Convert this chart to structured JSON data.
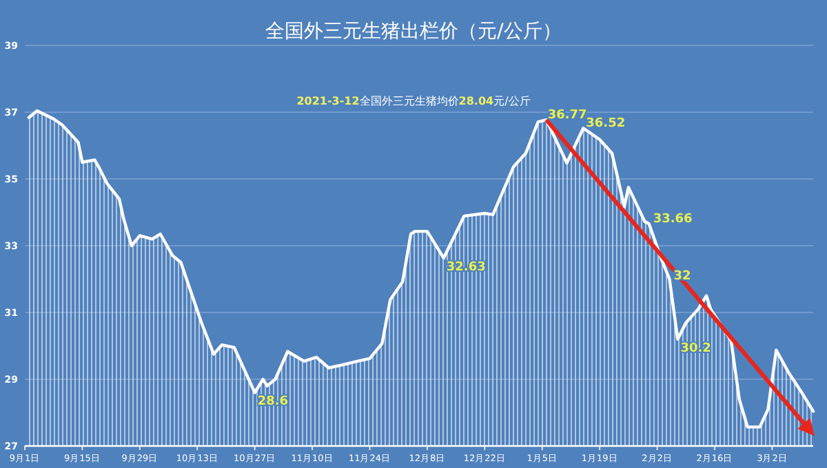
{
  "chart_data": {
    "type": "area",
    "title": "全国外三元生猪出栏价（元/公斤）",
    "annotations": [
      "2021-3-12全国外三元生猪均价28.04元/公斤",
      {
        "text": "28.6",
        "x": "2020-10-27",
        "y": 28.6
      },
      {
        "text": "32.63",
        "x": "2020-12-12",
        "y": 32.63
      },
      {
        "text": "36.77",
        "x": "2021-01-06",
        "y": 36.77
      },
      {
        "text": "36.52",
        "x": "2021-01-15",
        "y": 36.52
      },
      {
        "text": "33.66",
        "x": "2021-01-31",
        "y": 33.66
      },
      {
        "text": "32",
        "x": "2021-02-05",
        "y": 32.0
      },
      {
        "text": "30.2",
        "x": "2021-02-07",
        "y": 30.2
      }
    ],
    "series": [
      {
        "color": "#ffffff",
        "x": [
          "2020-09-02",
          "2020-09-04",
          "2020-09-08",
          "2020-09-10",
          "2020-09-11",
          "2020-09-14",
          "2020-09-15",
          "2020-09-18",
          "2020-09-19",
          "2020-09-21",
          "2020-09-24",
          "2020-09-25",
          "2020-09-27",
          "2020-09-29",
          "2020-10-02",
          "2020-10-04",
          "2020-10-07",
          "2020-10-09",
          "2020-10-14",
          "2020-10-17",
          "2020-10-19",
          "2020-10-22",
          "2020-10-27",
          "2020-10-29",
          "2020-10-30",
          "2020-11-01",
          "2020-11-04",
          "2020-11-08",
          "2020-11-11",
          "2020-11-14",
          "2020-11-17",
          "2020-11-21",
          "2020-11-24",
          "2020-11-27",
          "2020-11-29",
          "2020-12-02",
          "2020-12-04",
          "2020-12-05",
          "2020-12-08",
          "2020-12-12",
          "2020-12-17",
          "2020-12-22",
          "2020-12-24",
          "2020-12-29",
          "2021-01-01",
          "2021-01-04",
          "2021-01-06",
          "2021-01-11",
          "2021-01-15",
          "2021-01-19",
          "2021-01-22",
          "2021-01-25",
          "2021-01-26",
          "2021-01-30",
          "2021-01-31",
          "2021-02-03",
          "2021-02-05",
          "2021-02-07",
          "2021-02-09",
          "2021-02-12",
          "2021-02-14",
          "2021-02-15",
          "2021-02-20",
          "2021-02-22",
          "2021-02-24",
          "2021-02-27",
          "2021-03-01",
          "2021-03-03",
          "2021-03-06",
          "2021-03-09",
          "2021-03-12"
        ],
        "values": [
          36.84,
          37.04,
          36.8,
          36.63,
          36.5,
          36.1,
          35.5,
          35.57,
          35.36,
          34.87,
          34.4,
          33.84,
          33.0,
          33.3,
          33.2,
          33.35,
          32.7,
          32.5,
          30.7,
          29.75,
          30.03,
          29.95,
          28.6,
          29.0,
          28.8,
          29.0,
          29.83,
          29.54,
          29.66,
          29.34,
          29.42,
          29.54,
          29.62,
          30.07,
          31.38,
          31.92,
          33.35,
          33.43,
          33.43,
          32.63,
          33.89,
          33.97,
          33.93,
          35.36,
          35.77,
          36.71,
          36.77,
          35.48,
          36.52,
          36.18,
          35.77,
          34.17,
          34.75,
          33.72,
          33.66,
          32.61,
          32.0,
          30.2,
          30.69,
          31.1,
          31.5,
          31.1,
          30.16,
          28.4,
          27.57,
          27.57,
          28.1,
          29.87,
          29.2,
          28.64,
          28.04
        ]
      },
      {
        "type": "line",
        "color": "#e8261c",
        "x": [
          "2021-01-06",
          "2021-03-11"
        ],
        "values": [
          36.77,
          27.49
        ]
      }
    ],
    "xlim": [
      "2020-09-01",
      "2021-03-12"
    ],
    "xticks": [
      {
        "value": "2020-09-01",
        "label": "9月1日"
      },
      {
        "value": "2020-09-15",
        "label": "9月15日"
      },
      {
        "value": "2020-09-29",
        "label": "9月29日"
      },
      {
        "value": "2020-10-13",
        "label": "10月13日"
      },
      {
        "value": "2020-10-27",
        "label": "10月27日"
      },
      {
        "value": "2020-11-10",
        "label": "11月10日"
      },
      {
        "value": "2020-11-24",
        "label": "11月24日"
      },
      {
        "value": "2020-12-08",
        "label": "12月8日"
      },
      {
        "value": "2020-12-22",
        "label": "12月22日"
      },
      {
        "value": "2021-01-05",
        "label": "1月5日"
      },
      {
        "value": "2021-01-19",
        "label": "1月19日"
      },
      {
        "value": "2021-02-02",
        "label": "2月2日"
      },
      {
        "value": "2021-02-16",
        "label": "2月16日"
      },
      {
        "value": "2021-03-02",
        "label": "3月2日"
      }
    ],
    "ylim": [
      27,
      39
    ],
    "yticks": [
      27,
      29,
      31,
      33,
      35,
      37,
      39
    ],
    "grid": "y"
  }
}
